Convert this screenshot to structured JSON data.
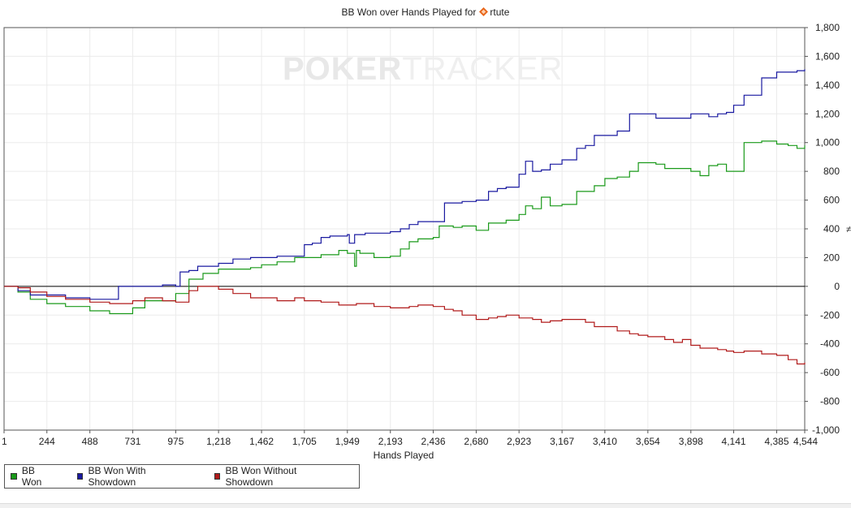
{
  "chart_data": {
    "type": "line",
    "title": "BB Won over Hands Played for",
    "player_name": "rtute",
    "player_icon": "orange-diamond-icon",
    "watermark": {
      "part1": "POKER",
      "part2": "TRACKER"
    },
    "xlabel": "Hands Played",
    "ylabel": "",
    "right_edge_mark": "≠",
    "xlim": [
      1,
      4544
    ],
    "ylim": [
      -1000,
      1800
    ],
    "x_ticks": [
      "1",
      "244",
      "488",
      "731",
      "975",
      "1,218",
      "1,462",
      "1,705",
      "1,949",
      "2,193",
      "2,436",
      "2,680",
      "2,923",
      "3,167",
      "3,410",
      "3,654",
      "3,898",
      "4,141",
      "4,385",
      "4,544"
    ],
    "x_tick_values": [
      1,
      244,
      488,
      731,
      975,
      1218,
      1462,
      1705,
      1949,
      2193,
      2436,
      2680,
      2923,
      3167,
      3410,
      3654,
      3898,
      4141,
      4385,
      4544
    ],
    "y_ticks": [
      "1,800",
      "1,600",
      "1,400",
      "1,200",
      "1,000",
      "800",
      "600",
      "400",
      "200",
      "0",
      "-200",
      "-400",
      "-600",
      "-800",
      "-1,000"
    ],
    "y_tick_values": [
      1800,
      1600,
      1400,
      1200,
      1000,
      800,
      600,
      400,
      200,
      0,
      -200,
      -400,
      -600,
      -800,
      -1000
    ],
    "grid": true,
    "legend_position": "bottom-left",
    "series": [
      {
        "name": "BB Won",
        "color": "#1a9a1a",
        "x": [
          1,
          80,
          150,
          244,
          350,
          488,
          600,
          731,
          800,
          850,
          975,
          1050,
          1130,
          1218,
          1300,
          1400,
          1462,
          1550,
          1650,
          1705,
          1800,
          1900,
          1949,
          1990,
          2000,
          2020,
          2100,
          2193,
          2250,
          2300,
          2350,
          2436,
          2470,
          2550,
          2600,
          2680,
          2750,
          2800,
          2850,
          2923,
          2960,
          3000,
          3050,
          3100,
          3167,
          3250,
          3300,
          3350,
          3410,
          3480,
          3550,
          3600,
          3654,
          3700,
          3750,
          3800,
          3850,
          3898,
          3950,
          4000,
          4050,
          4100,
          4141,
          4200,
          4300,
          4385,
          4450,
          4500,
          4544
        ],
        "values": [
          0,
          -40,
          -90,
          -120,
          -140,
          -170,
          -190,
          -150,
          -100,
          -100,
          -50,
          50,
          90,
          120,
          120,
          130,
          150,
          170,
          200,
          200,
          220,
          250,
          230,
          140,
          250,
          230,
          200,
          210,
          260,
          310,
          330,
          340,
          420,
          410,
          420,
          390,
          440,
          440,
          460,
          500,
          560,
          540,
          620,
          560,
          570,
          660,
          660,
          700,
          750,
          760,
          800,
          860,
          860,
          850,
          820,
          820,
          820,
          800,
          770,
          840,
          850,
          800,
          800,
          1000,
          1010,
          990,
          980,
          960,
          980
        ]
      },
      {
        "name": "BB Won With Showdown",
        "color": "#1a1aa0",
        "x": [
          1,
          80,
          150,
          244,
          350,
          488,
          600,
          650,
          731,
          800,
          900,
          975,
          1000,
          1050,
          1100,
          1218,
          1300,
          1400,
          1462,
          1550,
          1600,
          1705,
          1750,
          1800,
          1850,
          1949,
          1960,
          1990,
          2000,
          2050,
          2193,
          2250,
          2300,
          2350,
          2436,
          2500,
          2550,
          2600,
          2680,
          2750,
          2800,
          2850,
          2923,
          2960,
          3000,
          3050,
          3100,
          3167,
          3250,
          3300,
          3350,
          3410,
          3480,
          3550,
          3600,
          3654,
          3700,
          3750,
          3800,
          3850,
          3898,
          3950,
          4000,
          4050,
          4100,
          4141,
          4200,
          4300,
          4385,
          4450,
          4500,
          4544
        ],
        "values": [
          0,
          -30,
          -60,
          -60,
          -80,
          -90,
          -90,
          0,
          0,
          0,
          10,
          0,
          100,
          110,
          140,
          160,
          190,
          200,
          200,
          210,
          210,
          290,
          300,
          340,
          350,
          360,
          300,
          360,
          360,
          370,
          380,
          400,
          430,
          450,
          450,
          580,
          580,
          590,
          600,
          660,
          680,
          690,
          780,
          870,
          800,
          810,
          850,
          880,
          960,
          980,
          1050,
          1050,
          1080,
          1200,
          1200,
          1200,
          1170,
          1170,
          1170,
          1170,
          1200,
          1200,
          1180,
          1200,
          1210,
          1260,
          1330,
          1450,
          1490,
          1490,
          1500,
          1510
        ]
      },
      {
        "name": "BB Won Without Showdown",
        "color": "#b01a1a",
        "x": [
          1,
          80,
          150,
          244,
          350,
          488,
          600,
          731,
          800,
          900,
          975,
          1050,
          1100,
          1218,
          1300,
          1400,
          1462,
          1550,
          1650,
          1705,
          1800,
          1900,
          1949,
          2000,
          2100,
          2193,
          2300,
          2350,
          2436,
          2500,
          2550,
          2600,
          2680,
          2750,
          2800,
          2850,
          2923,
          3000,
          3050,
          3100,
          3167,
          3250,
          3300,
          3350,
          3410,
          3480,
          3550,
          3600,
          3654,
          3700,
          3750,
          3800,
          3850,
          3898,
          3950,
          4000,
          4050,
          4100,
          4141,
          4200,
          4300,
          4385,
          4450,
          4500,
          4544
        ],
        "values": [
          0,
          -10,
          -40,
          -70,
          -90,
          -110,
          -120,
          -100,
          -80,
          -100,
          -110,
          -30,
          0,
          -20,
          -50,
          -80,
          -80,
          -100,
          -80,
          -100,
          -110,
          -130,
          -130,
          -120,
          -140,
          -150,
          -140,
          -130,
          -140,
          -160,
          -170,
          -200,
          -230,
          -220,
          -210,
          -200,
          -220,
          -230,
          -250,
          -240,
          -230,
          -230,
          -250,
          -280,
          -280,
          -310,
          -330,
          -340,
          -350,
          -350,
          -370,
          -390,
          -370,
          -410,
          -430,
          -430,
          -440,
          -450,
          -460,
          -450,
          -470,
          -480,
          -510,
          -540,
          -530
        ]
      }
    ]
  }
}
